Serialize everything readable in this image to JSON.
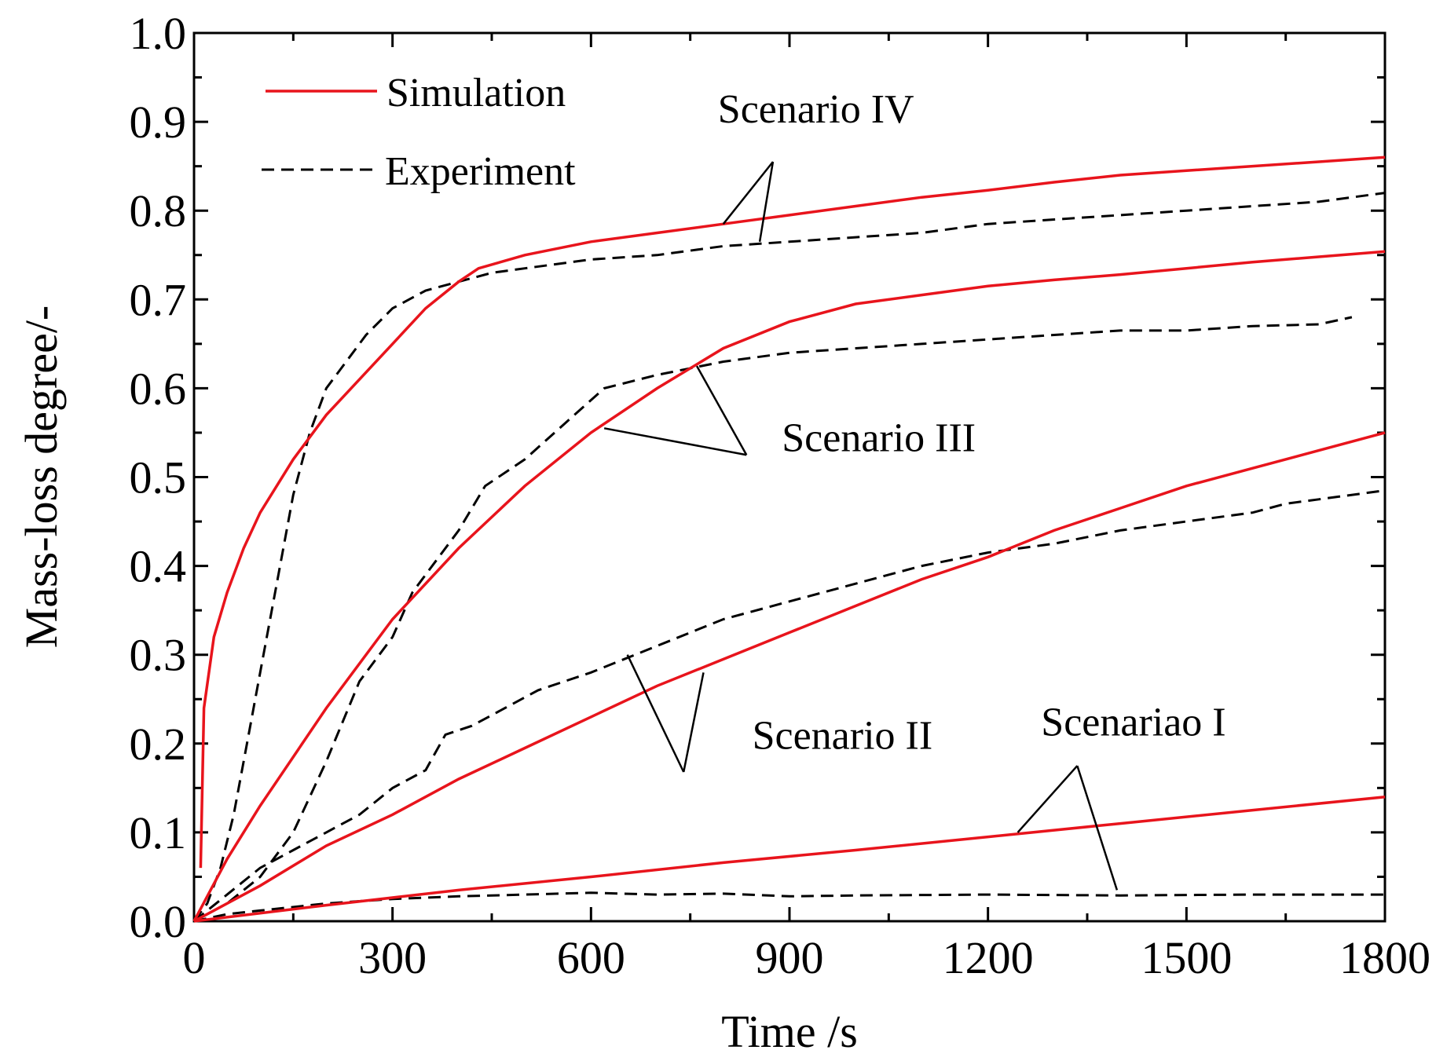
{
  "chart_data": {
    "type": "line",
    "title": "",
    "xlabel": "Time /s",
    "ylabel": "Mass-loss degree/-",
    "xlim": [
      0,
      1800
    ],
    "ylim": [
      0,
      1.0
    ],
    "x_ticks": [
      0,
      300,
      600,
      900,
      1200,
      1500,
      1800
    ],
    "x_tick_labels": [
      "0",
      "300",
      "600",
      "900",
      "1200",
      "1500",
      "1800"
    ],
    "y_ticks": [
      0,
      0.1,
      0.2,
      0.3,
      0.4,
      0.5,
      0.6,
      0.7,
      0.8,
      0.9,
      1.0
    ],
    "y_tick_labels": [
      "0.0",
      "0.1",
      "0.2",
      "0.3",
      "0.4",
      "0.5",
      "0.6",
      "0.7",
      "0.8",
      "0.9",
      "1.0"
    ],
    "grid": false,
    "legend_position": "top-left",
    "legend": [
      {
        "label": "Simulation",
        "color": "#e8141c",
        "style": "solid"
      },
      {
        "label": "Experiment",
        "color": "#000000",
        "style": "dashed"
      }
    ],
    "series": [
      {
        "name": "Scenario IV Simulation",
        "kind": "simulation",
        "points": [
          [
            10,
            0.06
          ],
          [
            15,
            0.24
          ],
          [
            30,
            0.32
          ],
          [
            50,
            0.37
          ],
          [
            75,
            0.42
          ],
          [
            100,
            0.46
          ],
          [
            150,
            0.52
          ],
          [
            200,
            0.57
          ],
          [
            250,
            0.61
          ],
          [
            300,
            0.65
          ],
          [
            350,
            0.69
          ],
          [
            400,
            0.72
          ],
          [
            430,
            0.735
          ],
          [
            500,
            0.75
          ],
          [
            600,
            0.765
          ],
          [
            700,
            0.775
          ],
          [
            800,
            0.785
          ],
          [
            900,
            0.795
          ],
          [
            1000,
            0.805
          ],
          [
            1100,
            0.815
          ],
          [
            1200,
            0.823
          ],
          [
            1300,
            0.832
          ],
          [
            1400,
            0.84
          ],
          [
            1500,
            0.845
          ],
          [
            1600,
            0.85
          ],
          [
            1700,
            0.855
          ],
          [
            1800,
            0.86
          ]
        ]
      },
      {
        "name": "Scenario IV Experiment",
        "kind": "experiment",
        "points": [
          [
            0,
            0
          ],
          [
            20,
            0.02
          ],
          [
            40,
            0.06
          ],
          [
            60,
            0.12
          ],
          [
            80,
            0.2
          ],
          [
            100,
            0.28
          ],
          [
            125,
            0.38
          ],
          [
            150,
            0.48
          ],
          [
            175,
            0.55
          ],
          [
            200,
            0.6
          ],
          [
            230,
            0.63
          ],
          [
            260,
            0.66
          ],
          [
            300,
            0.69
          ],
          [
            350,
            0.71
          ],
          [
            400,
            0.72
          ],
          [
            450,
            0.73
          ],
          [
            500,
            0.735
          ],
          [
            600,
            0.745
          ],
          [
            700,
            0.75
          ],
          [
            800,
            0.76
          ],
          [
            900,
            0.765
          ],
          [
            1000,
            0.77
          ],
          [
            1100,
            0.775
          ],
          [
            1200,
            0.785
          ],
          [
            1300,
            0.79
          ],
          [
            1400,
            0.795
          ],
          [
            1500,
            0.8
          ],
          [
            1600,
            0.805
          ],
          [
            1700,
            0.81
          ],
          [
            1800,
            0.82
          ]
        ]
      },
      {
        "name": "Scenario III Simulation",
        "kind": "simulation",
        "points": [
          [
            0,
            0
          ],
          [
            50,
            0.07
          ],
          [
            100,
            0.13
          ],
          [
            200,
            0.24
          ],
          [
            300,
            0.34
          ],
          [
            400,
            0.42
          ],
          [
            500,
            0.49
          ],
          [
            600,
            0.55
          ],
          [
            700,
            0.6
          ],
          [
            800,
            0.645
          ],
          [
            900,
            0.675
          ],
          [
            1000,
            0.695
          ],
          [
            1100,
            0.705
          ],
          [
            1200,
            0.715
          ],
          [
            1300,
            0.722
          ],
          [
            1400,
            0.728
          ],
          [
            1500,
            0.735
          ],
          [
            1600,
            0.742
          ],
          [
            1700,
            0.748
          ],
          [
            1800,
            0.754
          ]
        ]
      },
      {
        "name": "Scenario III Experiment",
        "kind": "experiment",
        "points": [
          [
            0,
            0
          ],
          [
            50,
            0.02
          ],
          [
            100,
            0.05
          ],
          [
            150,
            0.1
          ],
          [
            200,
            0.18
          ],
          [
            250,
            0.27
          ],
          [
            300,
            0.32
          ],
          [
            330,
            0.37
          ],
          [
            370,
            0.41
          ],
          [
            400,
            0.44
          ],
          [
            440,
            0.49
          ],
          [
            500,
            0.52
          ],
          [
            560,
            0.56
          ],
          [
            620,
            0.6
          ],
          [
            700,
            0.615
          ],
          [
            800,
            0.63
          ],
          [
            900,
            0.64
          ],
          [
            1000,
            0.645
          ],
          [
            1100,
            0.65
          ],
          [
            1200,
            0.655
          ],
          [
            1300,
            0.66
          ],
          [
            1400,
            0.665
          ],
          [
            1500,
            0.665
          ],
          [
            1600,
            0.67
          ],
          [
            1700,
            0.672
          ],
          [
            1750,
            0.68
          ]
        ]
      },
      {
        "name": "Scenario II Simulation",
        "kind": "simulation",
        "points": [
          [
            0,
            0
          ],
          [
            100,
            0.04
          ],
          [
            200,
            0.085
          ],
          [
            300,
            0.12
          ],
          [
            400,
            0.16
          ],
          [
            500,
            0.195
          ],
          [
            600,
            0.23
          ],
          [
            700,
            0.265
          ],
          [
            800,
            0.295
          ],
          [
            900,
            0.325
          ],
          [
            1000,
            0.355
          ],
          [
            1100,
            0.385
          ],
          [
            1200,
            0.41
          ],
          [
            1300,
            0.44
          ],
          [
            1400,
            0.465
          ],
          [
            1500,
            0.49
          ],
          [
            1600,
            0.51
          ],
          [
            1700,
            0.53
          ],
          [
            1800,
            0.55
          ]
        ]
      },
      {
        "name": "Scenario II Experiment",
        "kind": "experiment",
        "points": [
          [
            0,
            0
          ],
          [
            50,
            0.03
          ],
          [
            100,
            0.06
          ],
          [
            150,
            0.08
          ],
          [
            200,
            0.1
          ],
          [
            250,
            0.12
          ],
          [
            300,
            0.15
          ],
          [
            350,
            0.17
          ],
          [
            380,
            0.21
          ],
          [
            420,
            0.22
          ],
          [
            470,
            0.24
          ],
          [
            520,
            0.26
          ],
          [
            600,
            0.28
          ],
          [
            700,
            0.31
          ],
          [
            800,
            0.34
          ],
          [
            900,
            0.36
          ],
          [
            1000,
            0.38
          ],
          [
            1100,
            0.4
          ],
          [
            1200,
            0.415
          ],
          [
            1300,
            0.425
          ],
          [
            1400,
            0.44
          ],
          [
            1500,
            0.45
          ],
          [
            1600,
            0.46
          ],
          [
            1650,
            0.47
          ],
          [
            1700,
            0.475
          ],
          [
            1800,
            0.485
          ]
        ]
      },
      {
        "name": "Scenariao I Simulation",
        "kind": "simulation",
        "points": [
          [
            0,
            0
          ],
          [
            200,
            0.018
          ],
          [
            400,
            0.035
          ],
          [
            600,
            0.05
          ],
          [
            800,
            0.066
          ],
          [
            1000,
            0.08
          ],
          [
            1200,
            0.095
          ],
          [
            1400,
            0.11
          ],
          [
            1600,
            0.125
          ],
          [
            1800,
            0.14
          ]
        ]
      },
      {
        "name": "Scenariao I Experiment",
        "kind": "experiment",
        "points": [
          [
            0,
            0
          ],
          [
            50,
            0.008
          ],
          [
            100,
            0.012
          ],
          [
            200,
            0.02
          ],
          [
            300,
            0.025
          ],
          [
            400,
            0.028
          ],
          [
            500,
            0.03
          ],
          [
            600,
            0.032
          ],
          [
            700,
            0.03
          ],
          [
            800,
            0.031
          ],
          [
            900,
            0.028
          ],
          [
            1000,
            0.029
          ],
          [
            1200,
            0.03
          ],
          [
            1400,
            0.029
          ],
          [
            1600,
            0.03
          ],
          [
            1800,
            0.03
          ]
        ]
      }
    ],
    "annotations": [
      {
        "text": "Scenario IV",
        "anchor": [
          940,
          0.915
        ],
        "leaders": [
          [
            [
              800,
              0.785
            ],
            [
              875,
              0.855
            ]
          ],
          [
            [
              855,
              0.765
            ],
            [
              875,
              0.855
            ]
          ]
        ]
      },
      {
        "text": "Scenario III",
        "anchor": [
          1035,
          0.545
        ],
        "leaders": [
          [
            [
              620,
              0.555
            ],
            [
              835,
              0.525
            ]
          ],
          [
            [
              760,
              0.625
            ],
            [
              835,
              0.525
            ]
          ]
        ]
      },
      {
        "text": "Scenario II",
        "anchor": [
          980,
          0.21
        ],
        "leaders": [
          [
            [
              655,
              0.3
            ],
            [
              740,
              0.168
            ]
          ],
          [
            [
              770,
              0.28
            ],
            [
              740,
              0.168
            ]
          ]
        ]
      },
      {
        "text": "Scenariao I",
        "anchor": [
          1420,
          0.225
        ],
        "leaders": [
          [
            [
              1245,
              0.1
            ],
            [
              1335,
              0.175
            ]
          ],
          [
            [
              1395,
              0.035
            ],
            [
              1335,
              0.175
            ]
          ]
        ]
      }
    ]
  }
}
